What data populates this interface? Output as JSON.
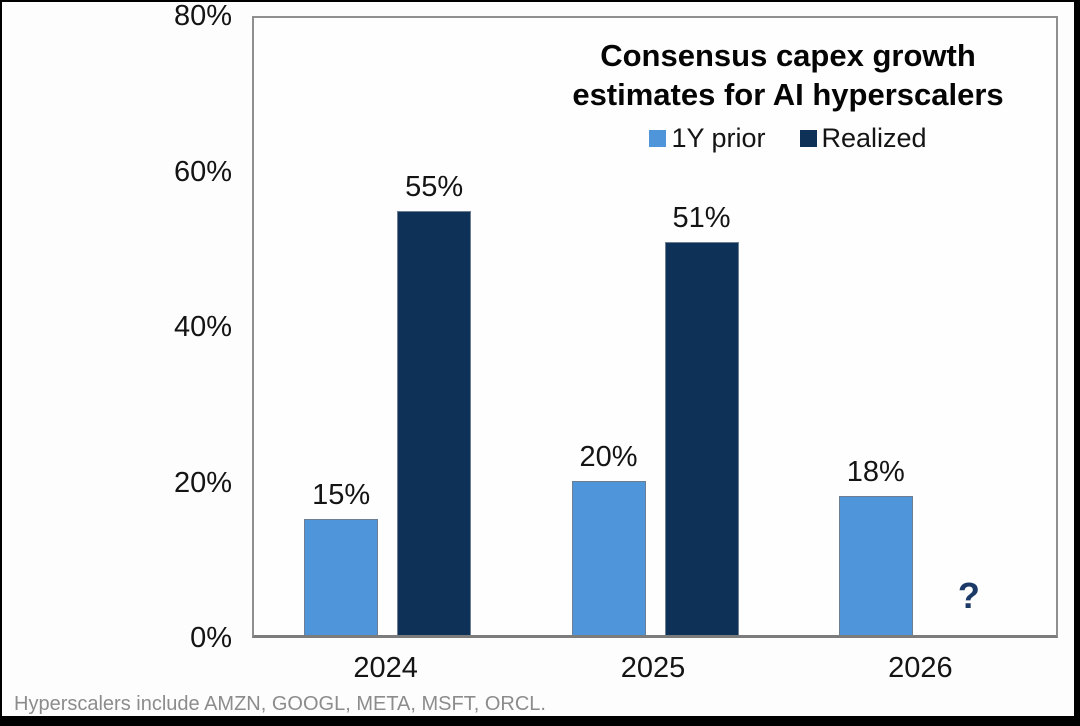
{
  "chart_data": {
    "type": "bar",
    "title": "Consensus capex growth estimates for AI hyperscalers",
    "categories": [
      "2024",
      "2025",
      "2026"
    ],
    "series": [
      {
        "name": "1Y prior",
        "color": "#4E96D9",
        "values": [
          15,
          20,
          18
        ]
      },
      {
        "name": "Realized",
        "color": "#0E3158",
        "values": [
          55,
          51,
          null
        ]
      }
    ],
    "value_suffix": "%",
    "missing_value_marker": "?",
    "ylim": [
      0,
      80
    ],
    "yticks": [
      0,
      20,
      40,
      60,
      80
    ],
    "ytick_suffix": "%",
    "legend_position": "top-center",
    "grid": false
  },
  "footnote": "Hyperscalers include AMZN, GOOGL, META, MSFT, ORCL.",
  "colors": {
    "bar_light_blue": "#4E96D9",
    "bar_navy": "#0E3158",
    "bar_border": "#6e7f93",
    "question_mark": "#1B3A68",
    "axis_border": "#8f8f8f",
    "footnote_text": "#8c8c8c",
    "label_text": "#141414"
  }
}
